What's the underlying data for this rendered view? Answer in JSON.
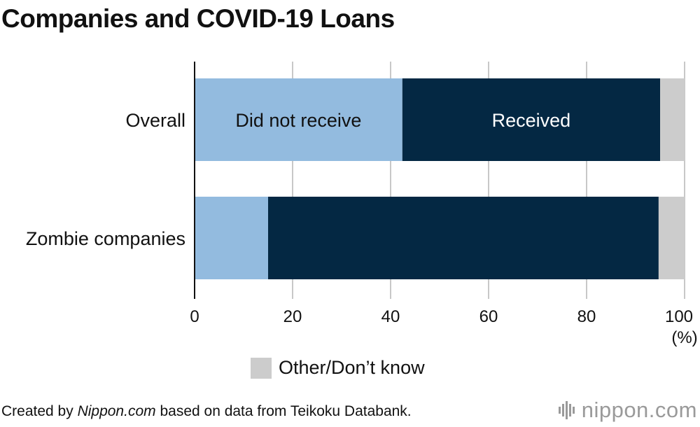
{
  "title": "Companies and COVID-19 Loans",
  "chart_data": {
    "type": "bar",
    "orientation": "horizontal",
    "stacked": true,
    "categories": [
      "Overall",
      "Zombie companies"
    ],
    "series": [
      {
        "name": "Did not receive",
        "values": [
          42.4,
          15.0
        ],
        "color": "#93bbdf"
      },
      {
        "name": "Received",
        "values": [
          52.6,
          79.7
        ],
        "color": "#042843"
      },
      {
        "name": "Other/Don’t know",
        "values": [
          5.0,
          5.3
        ],
        "color": "#cccccc"
      }
    ],
    "xlim": [
      0,
      100
    ],
    "xticks": [
      "0",
      "20",
      "40",
      "60",
      "80",
      "100"
    ],
    "xunit": "(%)",
    "grid": true,
    "legend": [
      "Other/Don’t know"
    ],
    "legend_placement": "bottom-center"
  },
  "footer": {
    "prefix": "Created by ",
    "source_name": "Nippon.com",
    "suffix": " based on data from Teikoku Databank."
  },
  "logo": {
    "text": "nippon",
    "dot": ".",
    "tld": "com"
  }
}
